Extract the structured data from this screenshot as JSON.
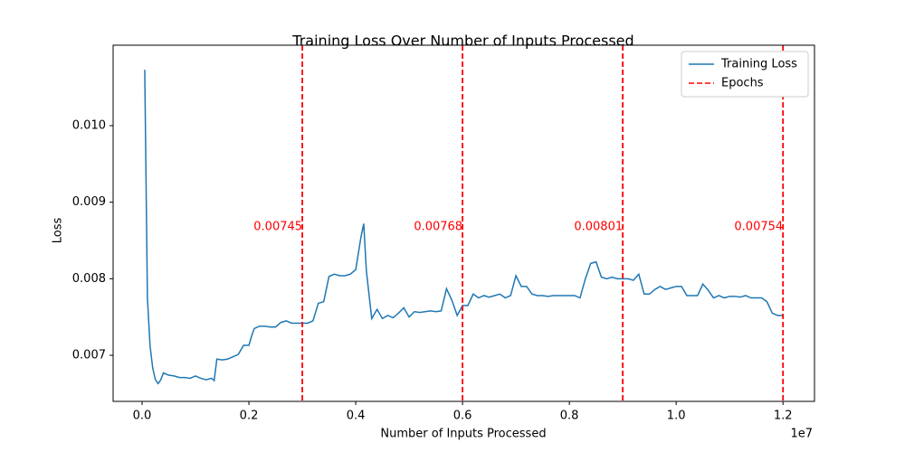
{
  "chart_data": {
    "type": "line",
    "title": "Training Loss Over Number of Inputs Processed",
    "x_label": "Number of Inputs Processed",
    "y_label": "Loss",
    "x_offset_label": "1e7",
    "x": [
      50000,
      100000,
      150000,
      200000,
      250000,
      300000,
      350000,
      400000,
      500000,
      600000,
      700000,
      800000,
      900000,
      1000000,
      1100000,
      1200000,
      1300000,
      1350000,
      1400000,
      1500000,
      1600000,
      1700000,
      1800000,
      1900000,
      2000000,
      2050000,
      2100000,
      2200000,
      2300000,
      2400000,
      2500000,
      2600000,
      2700000,
      2800000,
      2900000,
      3000000,
      3100000,
      3200000,
      3300000,
      3400000,
      3500000,
      3600000,
      3700000,
      3800000,
      3900000,
      4000000,
      4100000,
      4150000,
      4200000,
      4300000,
      4400000,
      4500000,
      4600000,
      4700000,
      4800000,
      4900000,
      5000000,
      5100000,
      5200000,
      5300000,
      5400000,
      5500000,
      5600000,
      5700000,
      5800000,
      5900000,
      6000000,
      6100000,
      6200000,
      6300000,
      6400000,
      6500000,
      6600000,
      6700000,
      6800000,
      6900000,
      7000000,
      7100000,
      7200000,
      7300000,
      7400000,
      7500000,
      7600000,
      7700000,
      7800000,
      7900000,
      8000000,
      8100000,
      8200000,
      8300000,
      8400000,
      8500000,
      8600000,
      8700000,
      8800000,
      8900000,
      9000000,
      9100000,
      9200000,
      9300000,
      9400000,
      9500000,
      9600000,
      9700000,
      9800000,
      9900000,
      10000000,
      10100000,
      10200000,
      10300000,
      10400000,
      10500000,
      10600000,
      10700000,
      10800000,
      10900000,
      11000000,
      11100000,
      11200000,
      11300000,
      11400000,
      11500000,
      11600000,
      11700000,
      11800000,
      11900000,
      12000000
    ],
    "series": [
      {
        "name": "Training Loss",
        "color": "#1f77b4",
        "values": [
          0.01073,
          0.00775,
          0.00712,
          0.00683,
          0.00668,
          0.00663,
          0.00668,
          0.00677,
          0.00674,
          0.00673,
          0.00671,
          0.00671,
          0.0067,
          0.00673,
          0.0067,
          0.00668,
          0.0067,
          0.00667,
          0.00695,
          0.00694,
          0.00695,
          0.00698,
          0.00701,
          0.00713,
          0.00713,
          0.00725,
          0.00735,
          0.00738,
          0.00738,
          0.00737,
          0.00737,
          0.00743,
          0.00745,
          0.00742,
          0.00742,
          0.00742,
          0.00742,
          0.00745,
          0.00768,
          0.0077,
          0.00803,
          0.00806,
          0.00804,
          0.00804,
          0.00806,
          0.00812,
          0.00855,
          0.00872,
          0.0081,
          0.00748,
          0.0076,
          0.00748,
          0.00752,
          0.00749,
          0.00755,
          0.00762,
          0.0075,
          0.00757,
          0.00756,
          0.00757,
          0.00758,
          0.00757,
          0.00758,
          0.00787,
          0.00772,
          0.00752,
          0.00765,
          0.00765,
          0.0078,
          0.00775,
          0.00778,
          0.00776,
          0.00778,
          0.0078,
          0.00775,
          0.00778,
          0.00804,
          0.0079,
          0.0079,
          0.0078,
          0.00778,
          0.00778,
          0.00777,
          0.00778,
          0.00778,
          0.00778,
          0.00778,
          0.00778,
          0.00775,
          0.008,
          0.0082,
          0.00822,
          0.00802,
          0.008,
          0.00802,
          0.008,
          0.008,
          0.008,
          0.00798,
          0.00806,
          0.0078,
          0.0078,
          0.00786,
          0.0079,
          0.00786,
          0.00788,
          0.0079,
          0.0079,
          0.00778,
          0.00778,
          0.00778,
          0.00793,
          0.00785,
          0.00775,
          0.00778,
          0.00775,
          0.00777,
          0.00777,
          0.00776,
          0.00778,
          0.00775,
          0.00775,
          0.00775,
          0.0077,
          0.00755,
          0.00752,
          0.00752
        ]
      }
    ],
    "vlines": {
      "name": "Epochs",
      "color": "#ff0000",
      "x": [
        3000000,
        6000000,
        9000000,
        12000000
      ],
      "labels": [
        "0.00745",
        "0.00768",
        "0.00801",
        "0.00754"
      ]
    },
    "xlim": [
      -542000,
      12590000
    ],
    "ylim": [
      0.006398,
      0.011051
    ],
    "xticks": [
      {
        "value": 0,
        "label": "0.0"
      },
      {
        "value": 2000000,
        "label": "0.2"
      },
      {
        "value": 4000000,
        "label": "0.4"
      },
      {
        "value": 6000000,
        "label": "0.6"
      },
      {
        "value": 8000000,
        "label": "0.8"
      },
      {
        "value": 10000000,
        "label": "1.0"
      },
      {
        "value": 12000000,
        "label": "1.2"
      }
    ],
    "yticks": [
      0.007,
      0.008,
      0.009,
      {
        "value": 0.01,
        "label": "0.010"
      }
    ],
    "legend": "upper right"
  }
}
